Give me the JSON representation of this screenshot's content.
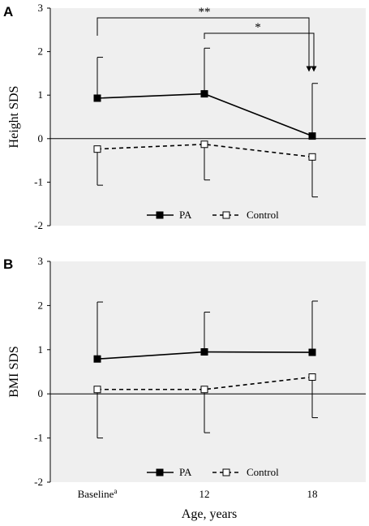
{
  "chart_data": [
    {
      "panel": "A",
      "type": "line",
      "ylabel": "Height SDS",
      "ylim": [
        -2,
        3
      ],
      "yticks": [
        "3",
        "2",
        "1",
        "0",
        "-1",
        "-2"
      ],
      "categories": [
        "Baseline",
        "12",
        "18"
      ],
      "series": [
        {
          "name": "PA",
          "marker": "filled-square",
          "line": "solid",
          "values": [
            0.93,
            1.03,
            0.06
          ],
          "err_up": [
            0.94,
            1.05,
            1.21
          ],
          "err_down": [
            0,
            0,
            0
          ]
        },
        {
          "name": "Control",
          "marker": "open-square",
          "line": "dashed",
          "values": [
            -0.24,
            -0.13,
            -0.42
          ],
          "err_up": [
            0,
            0,
            0
          ],
          "err_down": [
            0.83,
            0.82,
            0.92
          ]
        }
      ],
      "annotations": [
        {
          "text": "**",
          "from": "Baseline",
          "to": "18"
        },
        {
          "text": "*",
          "from": "12",
          "to": "18"
        }
      ],
      "legend": {
        "placement": "bottom-center"
      }
    },
    {
      "panel": "B",
      "type": "line",
      "ylabel": "BMI SDS",
      "ylim": [
        -2,
        3
      ],
      "yticks": [
        "3",
        "2",
        "1",
        "0",
        "-1",
        "-2"
      ],
      "categories": [
        "Baseline",
        "12",
        "18"
      ],
      "series": [
        {
          "name": "PA",
          "marker": "filled-square",
          "line": "solid",
          "values": [
            0.79,
            0.95,
            0.94
          ],
          "err_up": [
            1.29,
            0.9,
            1.16
          ],
          "err_down": [
            0,
            0,
            0
          ]
        },
        {
          "name": "Control",
          "marker": "open-square",
          "line": "dashed",
          "values": [
            0.1,
            0.1,
            0.38
          ],
          "err_up": [
            0,
            0,
            0
          ],
          "err_down": [
            1.1,
            0.98,
            0.92
          ]
        }
      ],
      "legend": {
        "placement": "bottom-center"
      }
    }
  ],
  "xaxis": {
    "ticks": [
      {
        "base": "Baseline",
        "sup": "a"
      },
      {
        "base": "12",
        "sup": ""
      },
      {
        "base": "18",
        "sup": ""
      }
    ],
    "label": "Age, years"
  },
  "colors": {
    "background": "#efefef",
    "line": "#000000"
  }
}
